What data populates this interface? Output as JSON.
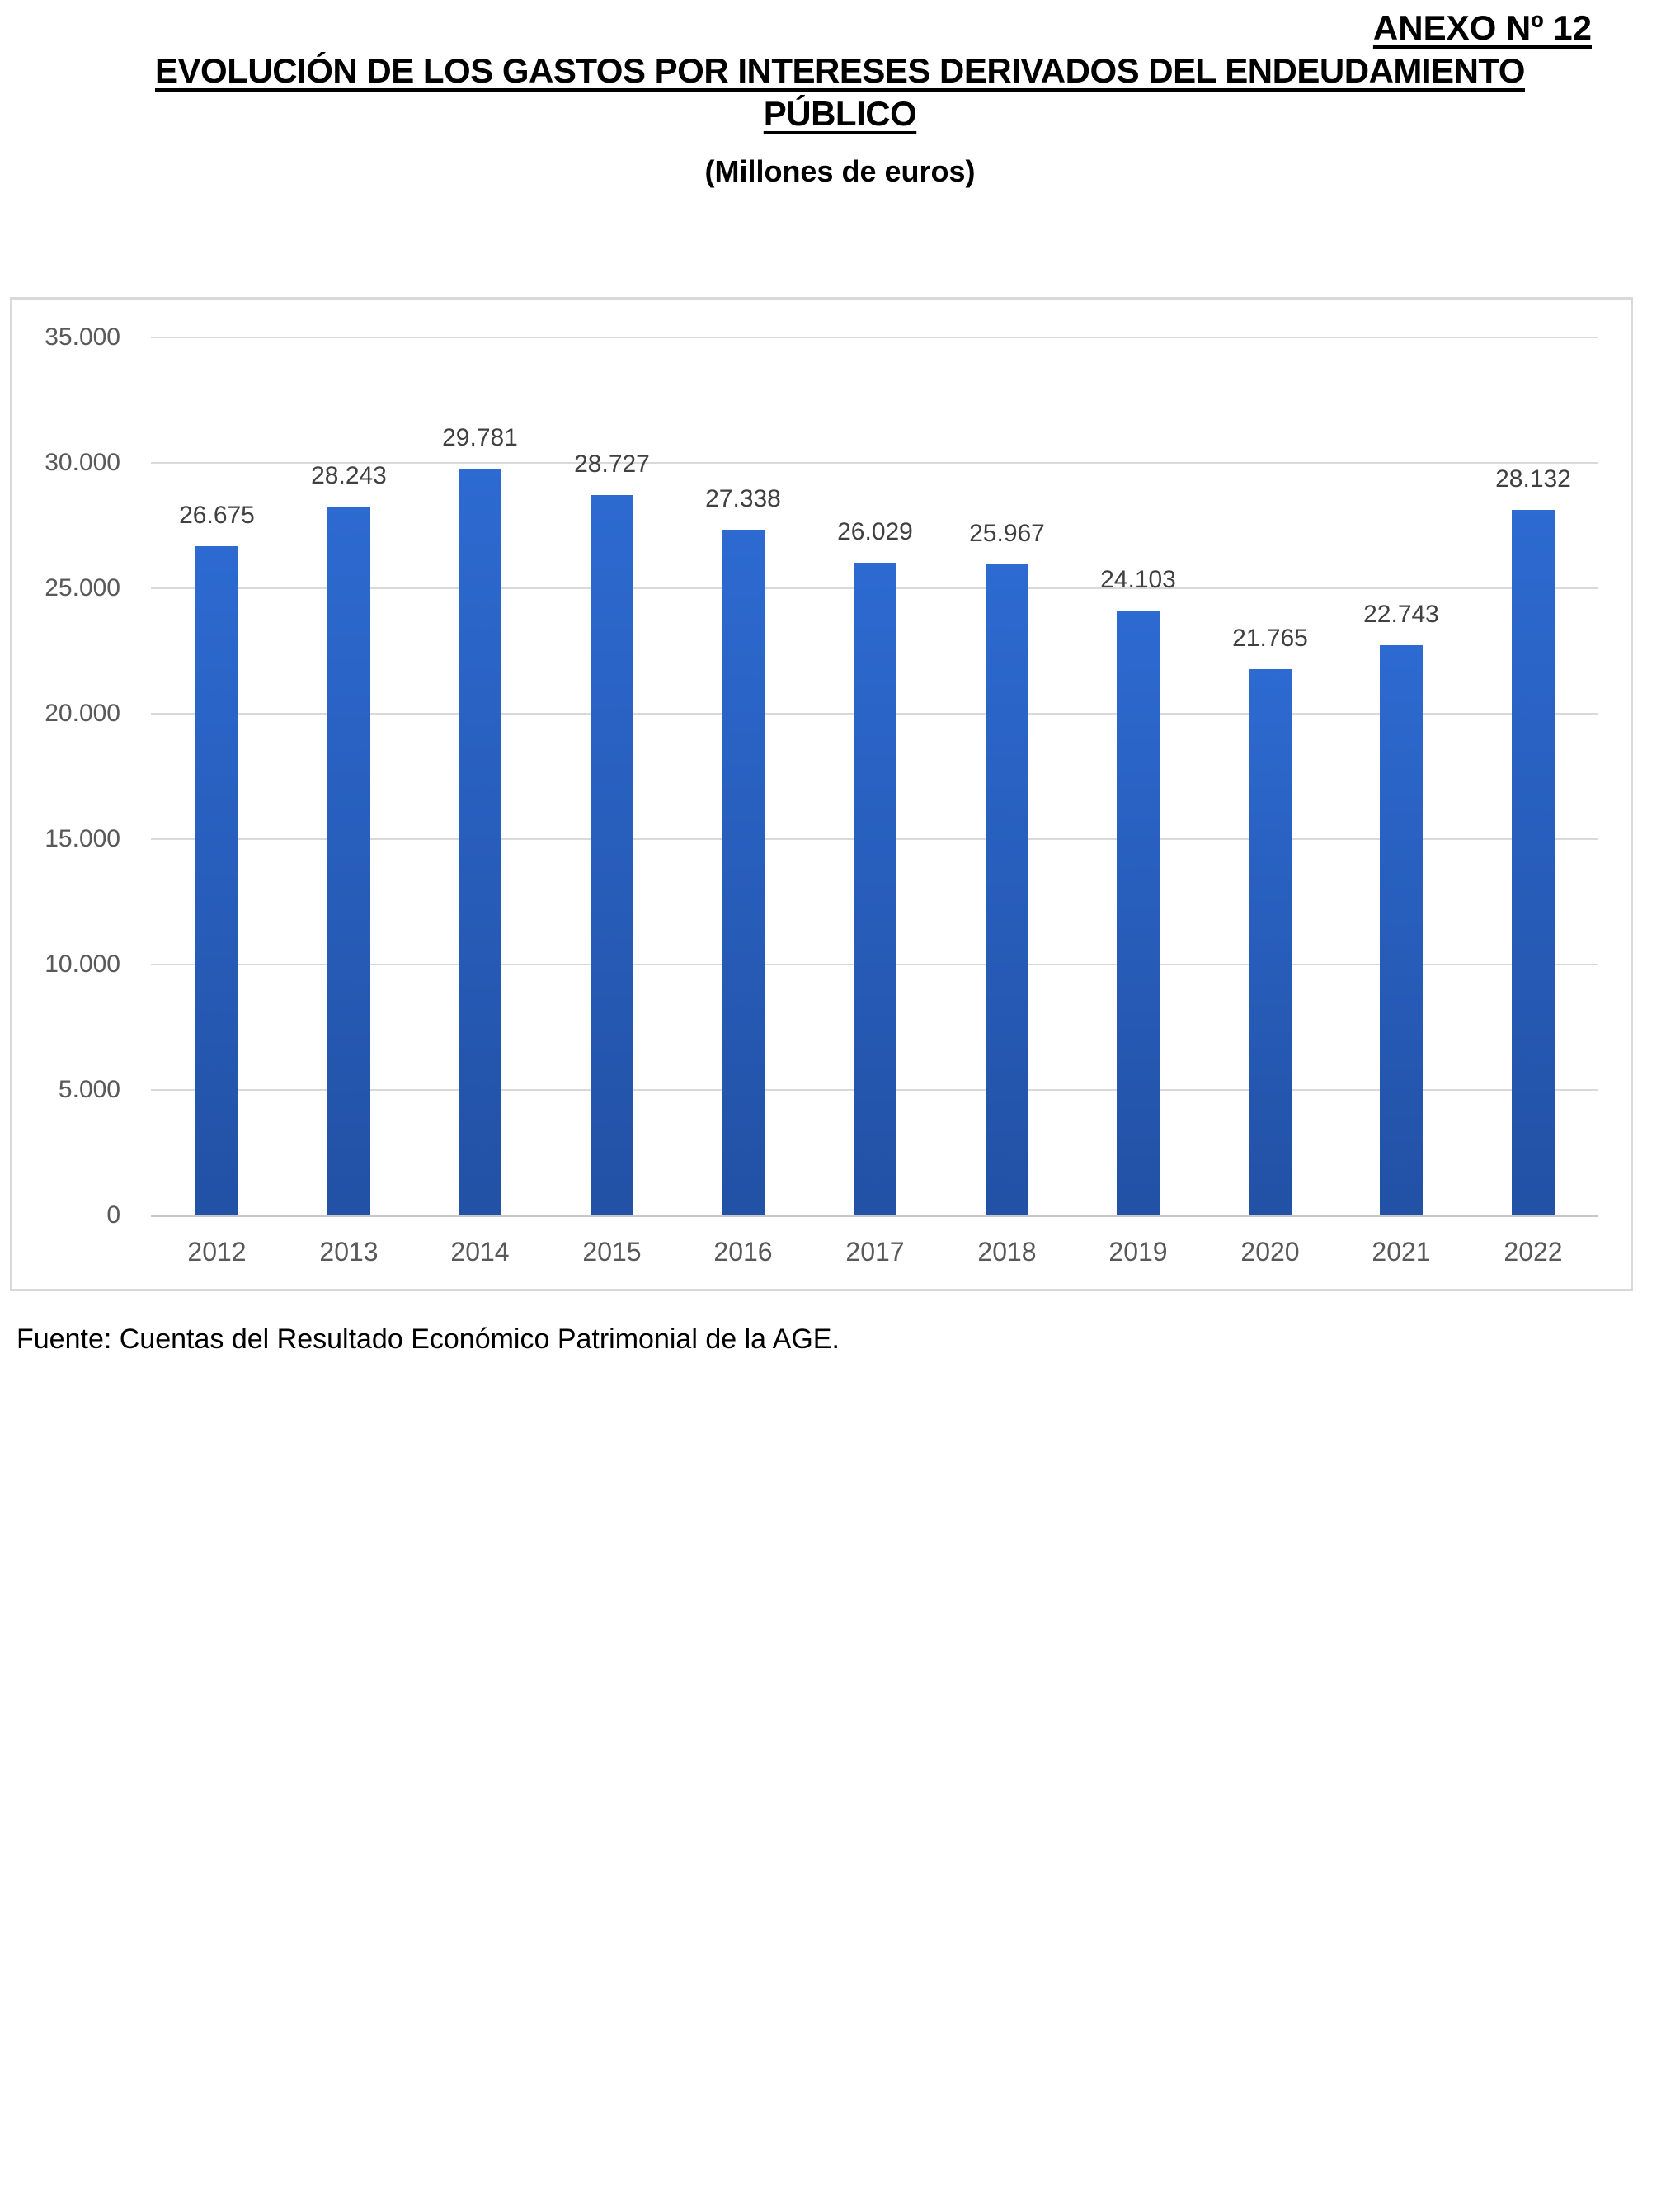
{
  "page": {
    "annex_label": "ANEXO Nº 12",
    "title_line1": "EVOLUCIÓN DE LOS GASTOS POR INTERESES DERIVADOS DEL ENDEUDAMIENTO",
    "title_line2": "PÚBLICO",
    "subtitle": "(Millones de euros)",
    "source_note": "Fuente: Cuentas del Resultado Económico Patrimonial de la AGE."
  },
  "colors": {
    "bar_top": "#2d6ad1",
    "bar_bottom": "#2251a5",
    "gridline": "#d9d9d9",
    "axis_line": "#c9c9c9",
    "chart_border": "#d9d9d9",
    "tick_label": "#595959",
    "data_label": "#404040"
  },
  "chart_data": {
    "type": "bar",
    "title": "EVOLUCIÓN DE LOS GASTOS POR INTERESES DERIVADOS DEL ENDEUDAMIENTO PÚBLICO",
    "subtitle": "(Millones de euros)",
    "xlabel": "",
    "ylabel": "",
    "categories": [
      "2012",
      "2013",
      "2014",
      "2015",
      "2016",
      "2017",
      "2018",
      "2019",
      "2020",
      "2021",
      "2022"
    ],
    "values": [
      26675,
      28243,
      29781,
      28727,
      27338,
      26029,
      25967,
      24103,
      21765,
      22743,
      28132
    ],
    "value_labels": [
      "26.675",
      "28.243",
      "29.781",
      "28.727",
      "27.338",
      "26.029",
      "25.967",
      "24.103",
      "21.765",
      "22.743",
      "28.132"
    ],
    "ylim": [
      0,
      35000
    ],
    "ytick_step": 5000,
    "ytick_labels": [
      "0",
      "5.000",
      "10.000",
      "15.000",
      "20.000",
      "25.000",
      "30.000",
      "35.000"
    ],
    "grid": true,
    "legend": "none",
    "bar_color": "blue gradient"
  }
}
